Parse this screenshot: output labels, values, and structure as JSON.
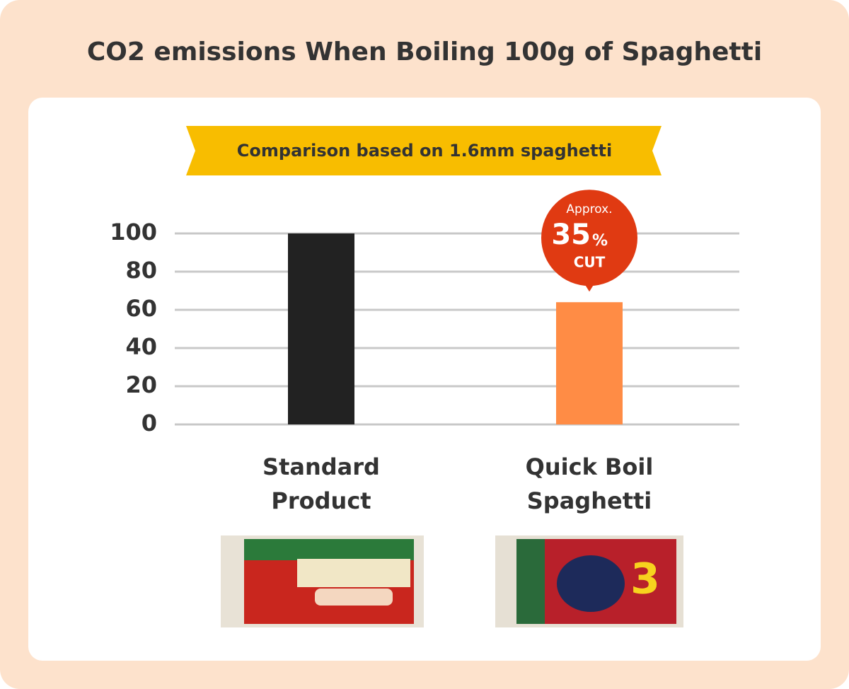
{
  "chart_data": {
    "type": "bar",
    "title": "CO2 emissions When Boiling 100g of Spaghetti",
    "subtitle": "Comparison based on 1.6mm spaghetti",
    "categories": [
      "Standard Product",
      "Quick Boil Spaghetti"
    ],
    "values": [
      100,
      64
    ],
    "colors": [
      "#222222",
      "#ff8c45"
    ],
    "ylim": [
      0,
      100
    ],
    "yticks": [
      0,
      20,
      40,
      60,
      80,
      100
    ],
    "grid": true,
    "annotation": {
      "top": "Approx.",
      "value": "35",
      "unit": "%",
      "bottom": "CUT"
    }
  }
}
